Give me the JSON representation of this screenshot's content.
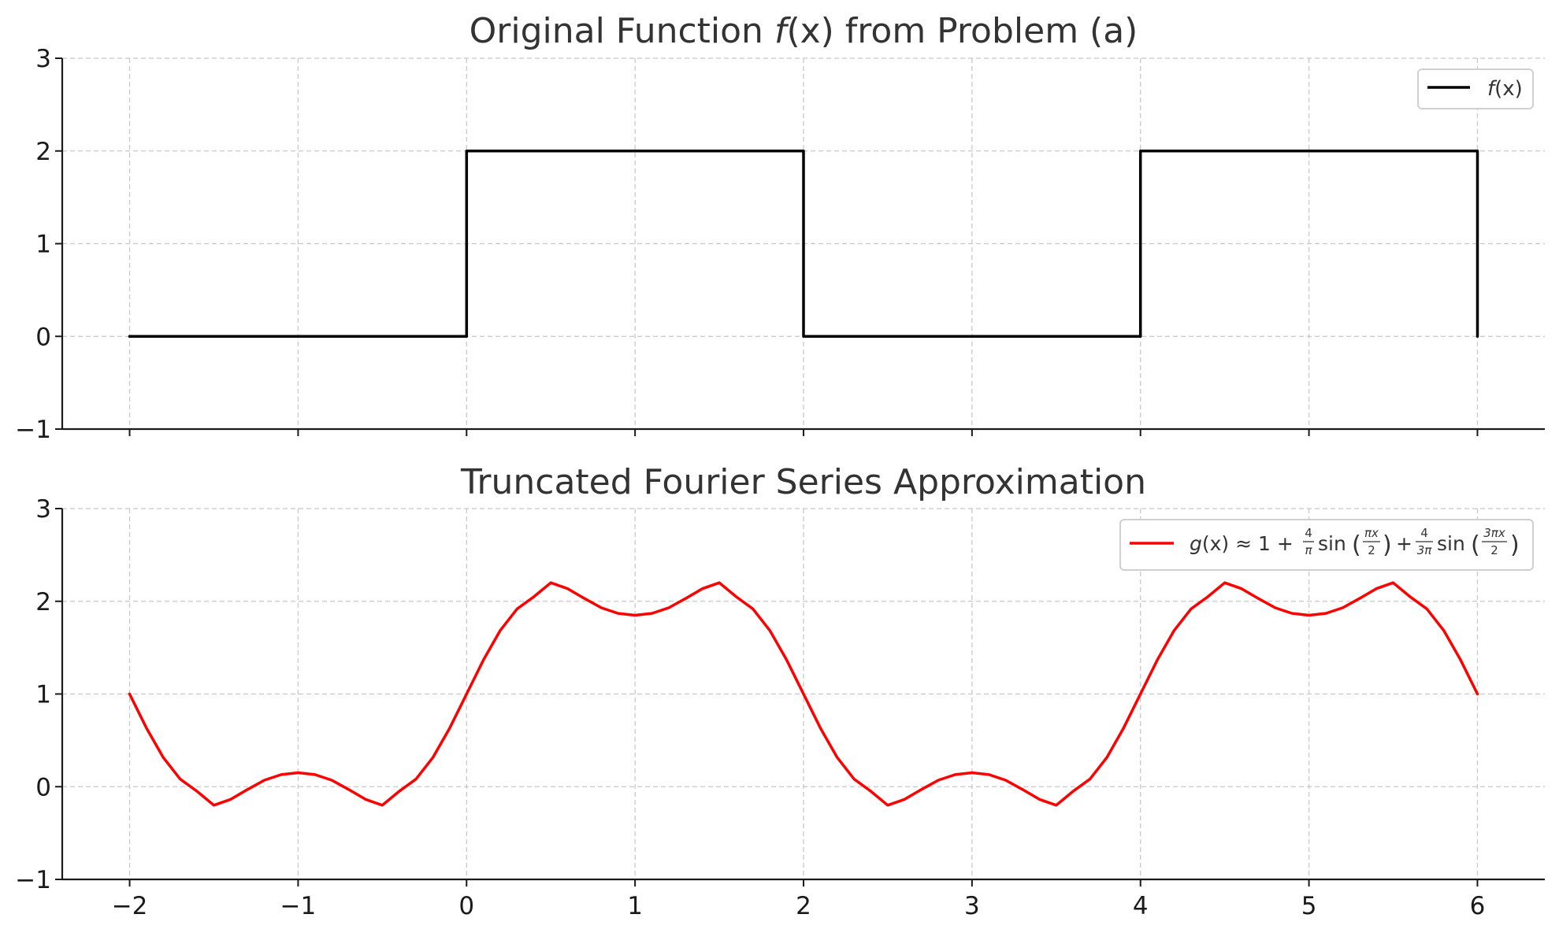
{
  "chart_data": [
    {
      "type": "line",
      "title": {
        "prefix": "Original Function ",
        "italic": "f",
        "suffix": "(x) from Problem (a)"
      },
      "xlim": [
        -2.4,
        6.4
      ],
      "ylim": [
        -1,
        3
      ],
      "x_ticks": [
        -2,
        -1,
        0,
        1,
        2,
        3,
        4,
        5,
        6
      ],
      "x_tick_labels": [
        "",
        "",
        "",
        "",
        "",
        "",
        "",
        "",
        ""
      ],
      "y_ticks": [
        -1,
        0,
        1,
        2,
        3
      ],
      "y_tick_labels": [
        "−1",
        "0",
        "1",
        "2",
        "3"
      ],
      "grid": true,
      "legend_position": "top-right",
      "series": [
        {
          "name": "f(x)",
          "legend": {
            "italic": "f",
            "rest": "(x)"
          },
          "color": "#000000",
          "x": [
            -2,
            0,
            0,
            2,
            2,
            4,
            4,
            6,
            6
          ],
          "y": [
            0,
            0,
            2,
            2,
            0,
            0,
            2,
            2,
            0
          ]
        }
      ]
    },
    {
      "type": "line",
      "title": "Truncated Fourier Series Approximation",
      "xlim": [
        -2.4,
        6.4
      ],
      "ylim": [
        -1,
        3
      ],
      "x_ticks": [
        -2,
        -1,
        0,
        1,
        2,
        3,
        4,
        5,
        6
      ],
      "x_tick_labels": [
        "−2",
        "−1",
        "0",
        "1",
        "2",
        "3",
        "4",
        "5",
        "6"
      ],
      "y_ticks": [
        -1,
        0,
        1,
        2,
        3
      ],
      "y_tick_labels": [
        "−1",
        "0",
        "1",
        "2",
        "3"
      ],
      "grid": true,
      "legend_position": "top-right",
      "series": [
        {
          "name": "g(x) ≈ 1 + 4/π sin(πx/2) + 4/(3π) sin(3πx/2)",
          "legend": {
            "g": "g",
            "x": "x",
            "approx": "(x) ≈ 1 + ",
            "four": "4",
            "pi": "π",
            "sin": "sin",
            "pix": "πx",
            "two": "2",
            "plus": "+",
            "threepi": "3π",
            "threepix": "3πx"
          },
          "color": "#ff0000",
          "x": [
            -2.0,
            -1.9,
            -1.8,
            -1.7,
            -1.6,
            -1.5,
            -1.4,
            -1.3,
            -1.2,
            -1.1,
            -1.0,
            -0.9,
            -0.8,
            -0.7,
            -0.6,
            -0.5,
            -0.4,
            -0.3,
            -0.2,
            -0.1,
            0.0,
            0.1,
            0.2,
            0.3,
            0.4,
            0.5,
            0.6,
            0.7,
            0.8,
            0.9,
            1.0,
            1.1,
            1.2,
            1.3,
            1.4,
            1.5,
            1.6,
            1.7,
            1.8,
            1.9,
            2.0,
            2.1,
            2.2,
            2.3,
            2.4,
            2.5,
            2.6,
            2.7,
            2.8,
            2.9,
            3.0,
            3.1,
            3.2,
            3.3,
            3.4,
            3.5,
            3.6,
            3.7,
            3.8,
            3.9,
            4.0,
            4.1,
            4.2,
            4.3,
            4.4,
            4.5,
            4.6,
            4.7,
            4.8,
            4.9,
            5.0,
            5.1,
            5.2,
            5.3,
            5.4,
            5.5,
            5.6,
            5.7,
            5.8,
            5.9,
            6.0
          ],
          "y": [
            1.0,
            0.633,
            0.315,
            0.082,
            -0.05,
            -0.2,
            -0.136,
            -0.03,
            0.07,
            0.13,
            0.151,
            0.13,
            0.07,
            -0.03,
            -0.136,
            -0.2,
            -0.05,
            0.082,
            0.315,
            0.633,
            1.0,
            1.367,
            1.685,
            1.918,
            2.05,
            2.2,
            2.136,
            2.03,
            1.93,
            1.87,
            1.849,
            1.87,
            1.93,
            2.03,
            2.136,
            2.2,
            2.05,
            1.918,
            1.685,
            1.367,
            1.0,
            0.633,
            0.315,
            0.082,
            -0.05,
            -0.2,
            -0.136,
            -0.03,
            0.07,
            0.13,
            0.151,
            0.13,
            0.07,
            -0.03,
            -0.136,
            -0.2,
            -0.05,
            0.082,
            0.315,
            0.633,
            1.0,
            1.367,
            1.685,
            1.918,
            2.05,
            2.2,
            2.136,
            2.03,
            1.93,
            1.87,
            1.849,
            1.87,
            1.93,
            2.03,
            2.136,
            2.2,
            2.05,
            1.918,
            1.685,
            1.367,
            1.0
          ]
        }
      ]
    }
  ]
}
